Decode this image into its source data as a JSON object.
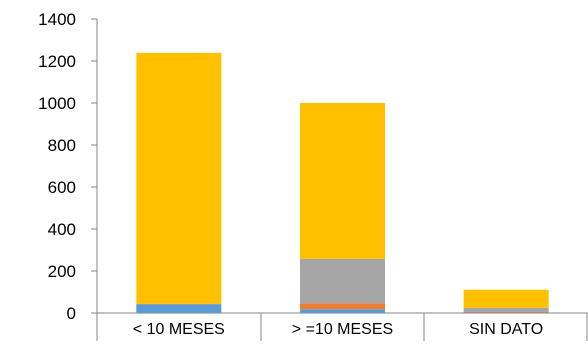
{
  "chart_data": {
    "type": "bar",
    "stacked": true,
    "categories": [
      "< 10 MESES",
      "> =10 MESES",
      "SIN DATO"
    ],
    "series": [
      {
        "values": [
          42,
          18,
          2
        ],
        "color": "#5b9bd5"
      },
      {
        "values": [
          2,
          28,
          3
        ],
        "color": "#ed7d31"
      },
      {
        "values": [
          0,
          212,
          20
        ],
        "color": "#a5a5a5"
      },
      {
        "values": [
          1195,
          742,
          86
        ],
        "color": "#ffc000"
      }
    ],
    "ylim": [
      0,
      1400
    ],
    "yticks": [
      "0",
      "200",
      "400",
      "600",
      "800",
      "1000",
      "1200",
      "1400"
    ],
    "title": "",
    "xlabel": "",
    "ylabel": "",
    "grid": false,
    "legend": "none"
  }
}
